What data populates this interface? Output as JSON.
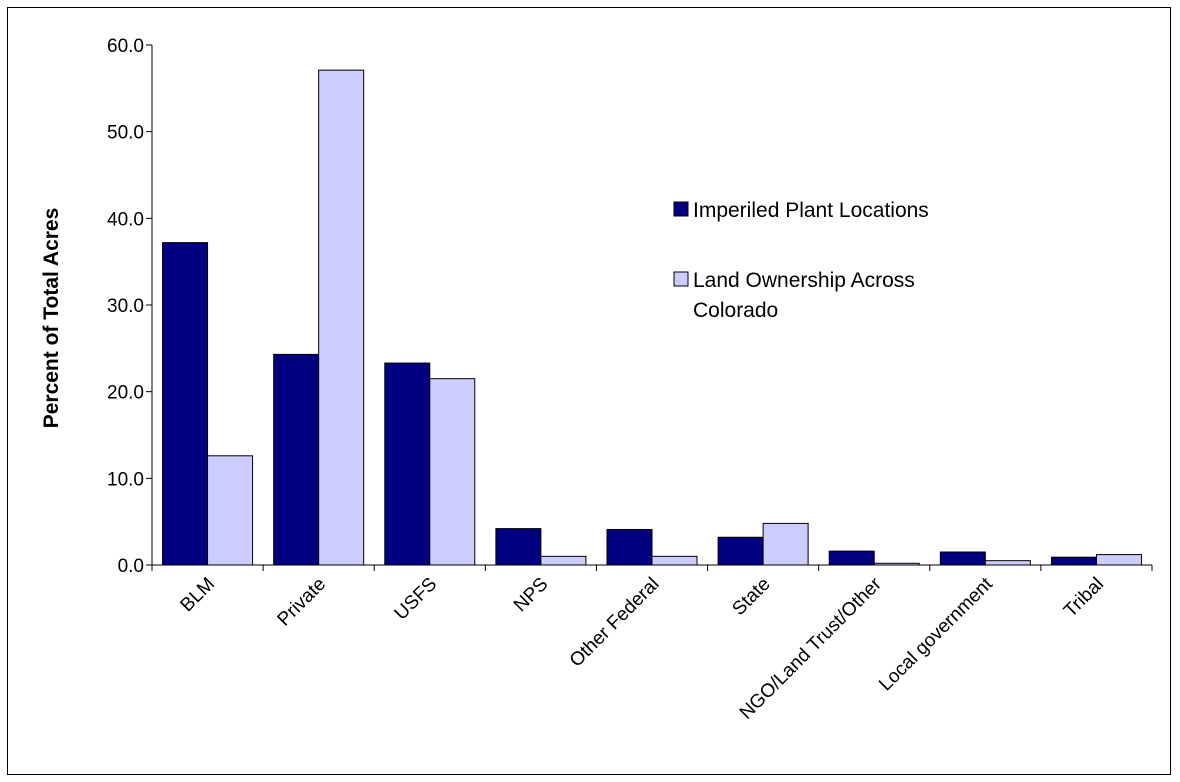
{
  "chart_data": {
    "type": "bar",
    "title": "",
    "xlabel": "",
    "ylabel": "Percent of Total Acres",
    "ylim": [
      0,
      60
    ],
    "yticks": [
      "0.0",
      "10.0",
      "20.0",
      "30.0",
      "40.0",
      "50.0",
      "60.0"
    ],
    "grid": false,
    "legend_position": "right",
    "categories": [
      "BLM",
      "Private",
      "USFS",
      "NPS",
      "Other Federal",
      "State",
      "NGO/Land Trust/Other",
      "Local government",
      "Tribal"
    ],
    "series": [
      {
        "name": "Imperiled Plant Locations",
        "color": "#000080",
        "values": [
          37.2,
          24.3,
          23.3,
          4.2,
          4.1,
          3.2,
          1.6,
          1.5,
          0.9
        ]
      },
      {
        "name": "Land Ownership Across Colorado",
        "legend_lines": [
          "Land Ownership Across",
          "Colorado"
        ],
        "color": "#ccccff",
        "values": [
          12.6,
          57.1,
          21.5,
          1.0,
          1.0,
          4.8,
          0.2,
          0.5,
          1.2
        ]
      }
    ]
  }
}
